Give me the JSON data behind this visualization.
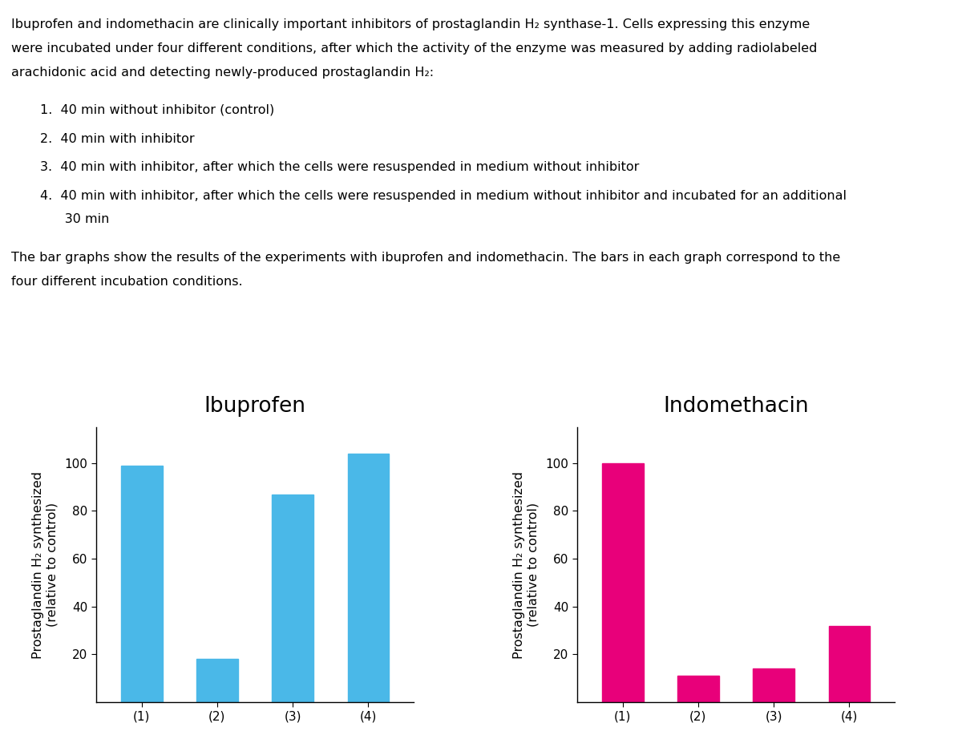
{
  "ibuprofen_values": [
    99,
    18,
    87,
    104
  ],
  "indomethacin_values": [
    100,
    11,
    14,
    32
  ],
  "ibuprofen_color": "#4AB8E8",
  "indomethacin_color": "#E8007A",
  "categories": [
    "(1)",
    "(2)",
    "(3)",
    "(4)"
  ],
  "ylabel": "Prostaglandin H₂ synthesized\n(relative to control)",
  "ibuprofen_title": "Ibuprofen",
  "indomethacin_title": "Indomethacin",
  "ylim": [
    0,
    115
  ],
  "yticks": [
    20,
    40,
    60,
    80,
    100
  ],
  "title_fontsize": 19,
  "ylabel_fontsize": 11.5,
  "tick_fontsize": 11,
  "bar_width": 0.55,
  "background_color": "#ffffff",
  "text_color": "#000000",
  "para1_line1": "Ibuprofen and indomethacin are clinically important inhibitors of prostaglandin H₂ synthase-1. Cells expressing this enzyme",
  "para1_line2": "were incubated under four different conditions, after which the activity of the enzyme was measured by adding radiolabeled",
  "para1_line3": "arachidonic acid and detecting newly-produced prostaglandin H₂:",
  "list_item1": "1.  40 min without inhibitor (control)",
  "list_item2": "2.  40 min with inhibitor",
  "list_item3": "3.  40 min with inhibitor, after which the cells were resuspended in medium without inhibitor",
  "list_item4a": "4.  40 min with inhibitor, after which the cells were resuspended in medium without inhibitor and incubated for an additional",
  "list_item4b": "      30 min",
  "para2_line1": "The bar graphs show the results of the experiments with ibuprofen and indomethacin. The bars in each graph correspond to the",
  "para2_line2": "four different incubation conditions.",
  "text_fontsize": 11.5
}
